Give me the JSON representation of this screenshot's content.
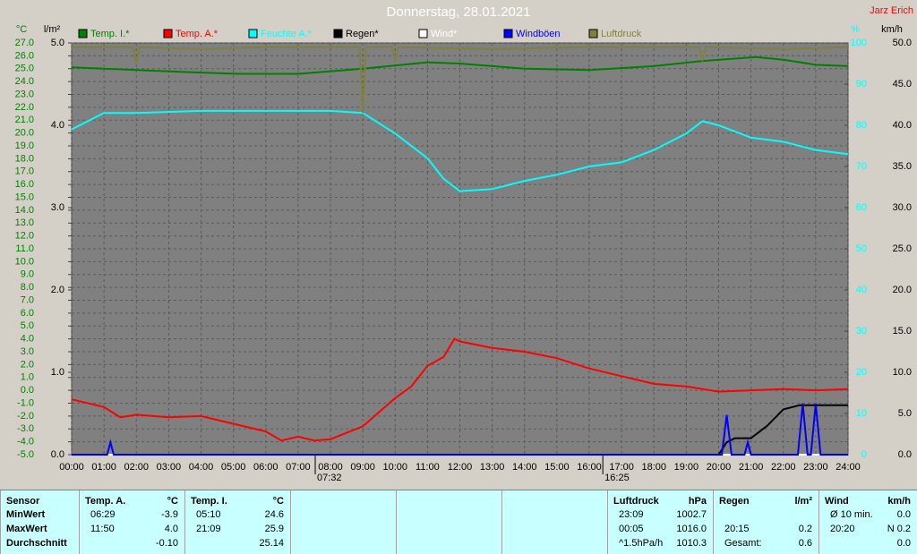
{
  "chart_data": {
    "type": "line",
    "title": "Donnerstag, 28.01.2021",
    "author": "Jarz Erich",
    "grid": true,
    "xlim": [
      0,
      24
    ],
    "xticks": [
      {
        "value": 0,
        "label": "00:00"
      },
      {
        "value": 1,
        "label": "01:00"
      },
      {
        "value": 2,
        "label": "02:00"
      },
      {
        "value": 3,
        "label": "03:00"
      },
      {
        "value": 4,
        "label": "04:00"
      },
      {
        "value": 5,
        "label": "05:00"
      },
      {
        "value": 6,
        "label": "06:00"
      },
      {
        "value": 7,
        "label": "07:00"
      },
      {
        "value": 8,
        "label": "08:00"
      },
      {
        "value": 9,
        "label": "09:00"
      },
      {
        "value": 10,
        "label": "10:00"
      },
      {
        "value": 11,
        "label": "11:00"
      },
      {
        "value": 12,
        "label": "12:00"
      },
      {
        "value": 13,
        "label": "13:00"
      },
      {
        "value": 14,
        "label": "14:00"
      },
      {
        "value": 15,
        "label": "15:00"
      },
      {
        "value": 16,
        "label": "16:00"
      },
      {
        "value": 17,
        "label": "17:00"
      },
      {
        "value": 18,
        "label": "18:00"
      },
      {
        "value": 19,
        "label": "19:00"
      },
      {
        "value": 20,
        "label": "20:00"
      },
      {
        "value": 21,
        "label": "21:00"
      },
      {
        "value": 22,
        "label": "22:00"
      },
      {
        "value": 23,
        "label": "23:00"
      },
      {
        "value": 24,
        "label": "24:00"
      }
    ],
    "axes": [
      {
        "unit": "°C",
        "color": "#008000",
        "lim": [
          -5,
          27
        ],
        "ticks": [
          {
            "value": -5,
            "label": "-5.0"
          },
          {
            "value": -4,
            "label": "-4.0"
          },
          {
            "value": -3,
            "label": "-3.0"
          },
          {
            "value": -2,
            "label": "-2.0"
          },
          {
            "value": -1,
            "label": "-1.0"
          },
          {
            "value": 0,
            "label": "0.0"
          },
          {
            "value": 1,
            "label": "1.0"
          },
          {
            "value": 2,
            "label": "2.0"
          },
          {
            "value": 3,
            "label": "3.0"
          },
          {
            "value": 4,
            "label": "4.0"
          },
          {
            "value": 5,
            "label": "5.0"
          },
          {
            "value": 6,
            "label": "6.0"
          },
          {
            "value": 7,
            "label": "7.0"
          },
          {
            "value": 8,
            "label": "8.0"
          },
          {
            "value": 9,
            "label": "9.0"
          },
          {
            "value": 10,
            "label": "10.0"
          },
          {
            "value": 11,
            "label": "11.0"
          },
          {
            "value": 12,
            "label": "12.0"
          },
          {
            "value": 13,
            "label": "13.0"
          },
          {
            "value": 14,
            "label": "14.0"
          },
          {
            "value": 15,
            "label": "15.0"
          },
          {
            "value": 16,
            "label": "16.0"
          },
          {
            "value": 17,
            "label": "17.0"
          },
          {
            "value": 18,
            "label": "18.0"
          },
          {
            "value": 19,
            "label": "19.0"
          },
          {
            "value": 20,
            "label": "20.0"
          },
          {
            "value": 21,
            "label": "21.0"
          },
          {
            "value": 22,
            "label": "22.0"
          },
          {
            "value": 23,
            "label": "23.0"
          },
          {
            "value": 24,
            "label": "24.0"
          },
          {
            "value": 25,
            "label": "25.0"
          },
          {
            "value": 26,
            "label": "26.0"
          },
          {
            "value": 27,
            "label": "27.0"
          }
        ]
      },
      {
        "unit": "l/m²",
        "color": "#000000",
        "lim": [
          0,
          5
        ],
        "ticks": [
          {
            "value": 0,
            "label": "0.0"
          },
          {
            "value": 1,
            "label": "1.0"
          },
          {
            "value": 2,
            "label": "2.0"
          },
          {
            "value": 3,
            "label": "3.0"
          },
          {
            "value": 4,
            "label": "4.0"
          },
          {
            "value": 5,
            "label": "5.0"
          }
        ]
      },
      {
        "unit": "%",
        "color": "#00ffff",
        "lim": [
          0,
          100
        ],
        "ticks": [
          0,
          10,
          20,
          30,
          40,
          50,
          60,
          70,
          80,
          90,
          100
        ]
      },
      {
        "unit": "km/h",
        "color": "#000000",
        "lim": [
          0,
          50
        ],
        "ticks": [
          {
            "value": 0,
            "label": "0.0"
          },
          {
            "value": 5,
            "label": "5.0"
          },
          {
            "value": 10,
            "label": "10.0"
          },
          {
            "value": 15,
            "label": "15.0"
          },
          {
            "value": 20,
            "label": "20.0"
          },
          {
            "value": 25,
            "label": "25.0"
          },
          {
            "value": 30,
            "label": "30.0"
          },
          {
            "value": 35,
            "label": "35.0"
          },
          {
            "value": 40,
            "label": "40.0"
          },
          {
            "value": 45,
            "label": "45.0"
          },
          {
            "value": 50,
            "label": "50.0"
          }
        ]
      }
    ],
    "series": [
      {
        "name": "Temp. I.*",
        "color": "#008000",
        "axis": 0,
        "x": [
          0,
          2,
          4,
          5.17,
          7,
          9,
          11,
          12,
          14,
          16,
          18,
          19.5,
          21.15,
          22,
          23,
          24
        ],
        "values": [
          25.1,
          24.9,
          24.7,
          24.6,
          24.6,
          25.0,
          25.5,
          25.4,
          25.0,
          24.9,
          25.2,
          25.6,
          25.9,
          25.7,
          25.3,
          25.2
        ]
      },
      {
        "name": "Temp. A.*",
        "color": "#ff0000",
        "axis": 0,
        "x": [
          0,
          1,
          1.5,
          2,
          3,
          4,
          5,
          6,
          6.48,
          7,
          7.5,
          8,
          9,
          10,
          10.5,
          11,
          11.5,
          11.83,
          12,
          13,
          14,
          15,
          16,
          17,
          18,
          19,
          20,
          21,
          22,
          23,
          24
        ],
        "values": [
          -0.7,
          -1.3,
          -2.1,
          -1.9,
          -2.1,
          -2.0,
          -2.6,
          -3.2,
          -3.9,
          -3.6,
          -3.9,
          -3.8,
          -2.8,
          -0.6,
          0.3,
          1.9,
          2.6,
          4.0,
          3.8,
          3.3,
          3.0,
          2.5,
          1.7,
          1.1,
          0.5,
          0.3,
          -0.1,
          0.0,
          0.1,
          0.0,
          0.1
        ]
      },
      {
        "name": "Feuchte A.*",
        "color": "#00ffff",
        "axis": 2,
        "x": [
          0,
          1,
          2,
          4,
          6,
          8,
          9,
          10,
          11,
          11.5,
          12,
          13,
          14,
          15,
          16,
          17,
          18,
          19,
          19.5,
          20,
          21,
          22,
          23,
          24
        ],
        "values": [
          79,
          83,
          83,
          83.5,
          83.5,
          83.5,
          83,
          78,
          72,
          67,
          64,
          64.5,
          66.5,
          68,
          70,
          71,
          74,
          78,
          81,
          80,
          77,
          76,
          74,
          73
        ]
      },
      {
        "name": "Regen*",
        "color": "#000000",
        "axis": 1,
        "x": [
          0,
          20,
          20.25,
          20.5,
          21,
          21.5,
          22,
          22.5,
          24
        ],
        "values": [
          0,
          0,
          0.15,
          0.2,
          0.2,
          0.35,
          0.55,
          0.6,
          0.6
        ]
      },
      {
        "name": "Wind*",
        "color": "#ffffff",
        "axis": 3,
        "x": [
          0,
          24
        ],
        "values": [
          0,
          0
        ]
      },
      {
        "name": "Windböen",
        "color": "#0000ff",
        "axis": 3,
        "x": [
          0,
          1.1,
          1.2,
          1.3,
          20.1,
          20.25,
          20.4,
          20.8,
          20.9,
          21.0,
          22.45,
          22.6,
          22.75,
          22.85,
          23.0,
          23.15,
          24
        ],
        "values": [
          0,
          0,
          1.5,
          0,
          0,
          4.8,
          0,
          0,
          1.5,
          0,
          0,
          6.2,
          0,
          0,
          6.2,
          0,
          0
        ]
      },
      {
        "name": "Luftdruck",
        "color": "#808040",
        "axis": 2,
        "x": [
          0,
          1,
          1.9,
          2.0,
          2.1,
          4,
          6,
          8.9,
          9.0,
          9.1,
          9.9,
          10.0,
          10.1,
          13,
          16,
          19.4,
          19.5,
          19.6,
          22,
          24
        ],
        "values": [
          99,
          99,
          99,
          95,
          99,
          98.5,
          99,
          99,
          83,
          99,
          99,
          96,
          99,
          98.5,
          99,
          99,
          96,
          99,
          98.5,
          99
        ]
      }
    ],
    "annotations": [
      {
        "x": 7.53,
        "label": "07:32"
      },
      {
        "x": 16.42,
        "label": "16:25"
      }
    ]
  },
  "table": {
    "columns": [
      {
        "header": [
          "Sensor"
        ],
        "rows": [
          [
            "MinWert"
          ],
          [
            "MaxWert"
          ],
          [
            "Durchschnitt"
          ]
        ]
      },
      {
        "header": [
          "Temp. A.",
          "°C"
        ],
        "rows": [
          [
            "06:29",
            "-3.9"
          ],
          [
            "11:50",
            "4.0"
          ],
          [
            null,
            "-0.10"
          ]
        ]
      },
      {
        "header": [
          "Temp. I.",
          "°C"
        ],
        "rows": [
          [
            "05:10",
            "24.6"
          ],
          [
            "21:09",
            "25.9"
          ],
          [
            null,
            "25.14"
          ]
        ]
      },
      {
        "header": [
          "Luftdruck",
          "hPa"
        ],
        "rows": [
          [
            "23:09",
            "1002.7"
          ],
          [
            "00:05",
            "1016.0"
          ],
          [
            "^1.5hPa/h",
            "1010.3"
          ]
        ]
      },
      {
        "header": [
          "Regen",
          "l/m²"
        ],
        "rows": [
          [
            null,
            null
          ],
          [
            "20:15",
            "0.2"
          ],
          [
            "Gesamt:",
            "0.6"
          ]
        ]
      },
      {
        "header": [
          "Wind",
          "km/h"
        ],
        "rows": [
          [
            "Ø 10 min.",
            "0.0"
          ],
          [
            "20:20",
            "N 0.2"
          ],
          [
            null,
            "0.0"
          ]
        ]
      }
    ]
  }
}
